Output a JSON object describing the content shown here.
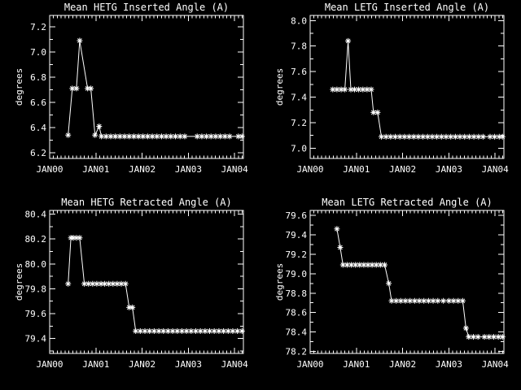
{
  "page": {
    "background": "#000000",
    "foreground": "#ffffff",
    "layout": "2x2 grid of line plots"
  },
  "chart_data": [
    {
      "type": "line",
      "title": "Mean HETG Inserted Angle (A)",
      "ylabel": "degrees",
      "xlabel": "",
      "marker": "asterisk",
      "color": "#ffffff",
      "grid": false,
      "legend": "none",
      "xlim": [
        2000.0,
        2004.19
      ],
      "ylim": [
        6.155,
        7.29
      ],
      "xticks": [
        2000,
        2001,
        2002,
        2003,
        2004
      ],
      "xtick_labels": [
        "JAN00",
        "JAN01",
        "JAN02",
        "JAN03",
        "JAN04"
      ],
      "x_minor_step": 0.08333,
      "yticks": [
        6.2,
        6.4,
        6.6,
        6.8,
        7.0,
        7.2
      ],
      "ytick_labels": [
        "6.2",
        "6.4",
        "6.6",
        "6.8",
        "7.0",
        "7.2"
      ],
      "y_minor_step": 0.1,
      "points": [
        [
          2000.4,
          6.34
        ],
        [
          2000.49,
          6.71
        ],
        [
          2000.58,
          6.71
        ],
        [
          2000.65,
          7.09
        ],
        [
          2000.82,
          6.71
        ],
        [
          2000.89,
          6.71
        ],
        [
          2000.98,
          6.34
        ],
        [
          2001.07,
          6.41
        ],
        [
          2001.12,
          6.33
        ],
        [
          2001.22,
          6.33
        ],
        [
          2001.32,
          6.33
        ],
        [
          2001.42,
          6.33
        ],
        [
          2001.52,
          6.33
        ],
        [
          2001.62,
          6.33
        ],
        [
          2001.72,
          6.33
        ],
        [
          2001.82,
          6.33
        ],
        [
          2001.92,
          6.33
        ],
        [
          2002.02,
          6.33
        ],
        [
          2002.12,
          6.33
        ],
        [
          2002.22,
          6.33
        ],
        [
          2002.32,
          6.33
        ],
        [
          2002.42,
          6.33
        ],
        [
          2002.52,
          6.33
        ],
        [
          2002.62,
          6.33
        ],
        [
          2002.72,
          6.33
        ],
        [
          2002.82,
          6.33
        ],
        [
          2002.92,
          6.33
        ],
        [
          2003.19,
          6.33
        ],
        [
          2003.29,
          6.33
        ],
        [
          2003.39,
          6.33
        ],
        [
          2003.49,
          6.33
        ],
        [
          2003.59,
          6.33
        ],
        [
          2003.69,
          6.33
        ],
        [
          2003.79,
          6.33
        ],
        [
          2003.89,
          6.33
        ],
        [
          2004.08,
          6.33
        ],
        [
          2004.16,
          6.33
        ]
      ]
    },
    {
      "type": "line",
      "title": "Mean LETG Inserted Angle (A)",
      "ylabel": "degrees",
      "xlabel": "",
      "marker": "asterisk",
      "color": "#ffffff",
      "grid": false,
      "legend": "none",
      "xlim": [
        2000.0,
        2004.19
      ],
      "ylim": [
        6.92,
        8.04
      ],
      "xticks": [
        2000,
        2001,
        2002,
        2003,
        2004
      ],
      "xtick_labels": [
        "JAN00",
        "JAN01",
        "JAN02",
        "JAN03",
        "JAN04"
      ],
      "x_minor_step": 0.08333,
      "yticks": [
        7.0,
        7.2,
        7.4,
        7.6,
        7.8,
        8.0
      ],
      "ytick_labels": [
        "7.0",
        "7.2",
        "7.4",
        "7.6",
        "7.8",
        "8.0"
      ],
      "y_minor_step": 0.1,
      "points": [
        [
          2000.49,
          7.46
        ],
        [
          2000.58,
          7.46
        ],
        [
          2000.67,
          7.46
        ],
        [
          2000.75,
          7.46
        ],
        [
          2000.82,
          7.84
        ],
        [
          2000.88,
          7.46
        ],
        [
          2000.96,
          7.46
        ],
        [
          2001.05,
          7.46
        ],
        [
          2001.14,
          7.46
        ],
        [
          2001.23,
          7.46
        ],
        [
          2001.32,
          7.46
        ],
        [
          2001.37,
          7.28
        ],
        [
          2001.46,
          7.28
        ],
        [
          2001.54,
          7.09
        ],
        [
          2001.64,
          7.09
        ],
        [
          2001.74,
          7.09
        ],
        [
          2001.84,
          7.09
        ],
        [
          2001.94,
          7.09
        ],
        [
          2002.04,
          7.09
        ],
        [
          2002.14,
          7.09
        ],
        [
          2002.24,
          7.09
        ],
        [
          2002.34,
          7.09
        ],
        [
          2002.44,
          7.09
        ],
        [
          2002.54,
          7.09
        ],
        [
          2002.64,
          7.09
        ],
        [
          2002.74,
          7.09
        ],
        [
          2002.84,
          7.09
        ],
        [
          2002.94,
          7.09
        ],
        [
          2003.04,
          7.09
        ],
        [
          2003.14,
          7.09
        ],
        [
          2003.24,
          7.09
        ],
        [
          2003.34,
          7.09
        ],
        [
          2003.44,
          7.09
        ],
        [
          2003.54,
          7.09
        ],
        [
          2003.64,
          7.09
        ],
        [
          2003.74,
          7.09
        ],
        [
          2003.89,
          7.09
        ],
        [
          2003.99,
          7.09
        ],
        [
          2004.09,
          7.09
        ],
        [
          2004.16,
          7.09
        ]
      ]
    },
    {
      "type": "line",
      "title": "Mean HETG Retracted Angle (A)",
      "ylabel": "degrees",
      "xlabel": "",
      "marker": "asterisk",
      "color": "#ffffff",
      "grid": false,
      "legend": "none",
      "xlim": [
        2000.0,
        2004.19
      ],
      "ylim": [
        79.28,
        80.43
      ],
      "xticks": [
        2000,
        2001,
        2002,
        2003,
        2004
      ],
      "xtick_labels": [
        "JAN00",
        "JAN01",
        "JAN02",
        "JAN03",
        "JAN04"
      ],
      "x_minor_step": 0.08333,
      "yticks": [
        79.4,
        79.6,
        79.8,
        80.0,
        80.2,
        80.4
      ],
      "ytick_labels": [
        "79.4",
        "79.6",
        "79.8",
        "80.0",
        "80.2",
        "80.4"
      ],
      "y_minor_step": 0.1,
      "points": [
        [
          2000.4,
          79.84
        ],
        [
          2000.46,
          80.21
        ],
        [
          2000.51,
          80.21
        ],
        [
          2000.58,
          80.21
        ],
        [
          2000.65,
          80.21
        ],
        [
          2000.75,
          79.84
        ],
        [
          2000.84,
          79.84
        ],
        [
          2000.93,
          79.84
        ],
        [
          2001.02,
          79.84
        ],
        [
          2001.11,
          79.84
        ],
        [
          2001.19,
          79.84
        ],
        [
          2001.28,
          79.84
        ],
        [
          2001.37,
          79.84
        ],
        [
          2001.46,
          79.84
        ],
        [
          2001.55,
          79.84
        ],
        [
          2001.64,
          79.84
        ],
        [
          2001.72,
          79.65
        ],
        [
          2001.79,
          79.65
        ],
        [
          2001.86,
          79.46
        ],
        [
          2001.96,
          79.46
        ],
        [
          2002.06,
          79.46
        ],
        [
          2002.16,
          79.46
        ],
        [
          2002.26,
          79.46
        ],
        [
          2002.36,
          79.46
        ],
        [
          2002.46,
          79.46
        ],
        [
          2002.56,
          79.46
        ],
        [
          2002.66,
          79.46
        ],
        [
          2002.76,
          79.46
        ],
        [
          2002.86,
          79.46
        ],
        [
          2002.96,
          79.46
        ],
        [
          2003.06,
          79.46
        ],
        [
          2003.16,
          79.46
        ],
        [
          2003.26,
          79.46
        ],
        [
          2003.36,
          79.46
        ],
        [
          2003.46,
          79.46
        ],
        [
          2003.56,
          79.46
        ],
        [
          2003.66,
          79.46
        ],
        [
          2003.76,
          79.46
        ],
        [
          2003.86,
          79.46
        ],
        [
          2003.96,
          79.46
        ],
        [
          2004.06,
          79.46
        ],
        [
          2004.16,
          79.46
        ]
      ]
    },
    {
      "type": "line",
      "title": "Mean LETG Retracted Angle (A)",
      "ylabel": "degrees",
      "xlabel": "",
      "marker": "asterisk",
      "color": "#ffffff",
      "grid": false,
      "legend": "none",
      "xlim": [
        2000.0,
        2004.19
      ],
      "ylim": [
        78.18,
        79.65
      ],
      "xticks": [
        2000,
        2001,
        2002,
        2003,
        2004
      ],
      "xtick_labels": [
        "JAN00",
        "JAN01",
        "JAN02",
        "JAN03",
        "JAN04"
      ],
      "x_minor_step": 0.08333,
      "yticks": [
        78.2,
        78.4,
        78.6,
        78.8,
        79.0,
        79.2,
        79.4,
        79.6
      ],
      "ytick_labels": [
        "78.2",
        "78.4",
        "78.6",
        "78.8",
        "79.0",
        "79.2",
        "79.4",
        "79.6"
      ],
      "y_minor_step": 0.1,
      "points": [
        [
          2000.58,
          79.46
        ],
        [
          2000.65,
          79.27
        ],
        [
          2000.71,
          79.09
        ],
        [
          2000.8,
          79.09
        ],
        [
          2000.89,
          79.09
        ],
        [
          2000.98,
          79.09
        ],
        [
          2001.07,
          79.09
        ],
        [
          2001.16,
          79.09
        ],
        [
          2001.25,
          79.09
        ],
        [
          2001.34,
          79.09
        ],
        [
          2001.43,
          79.09
        ],
        [
          2001.52,
          79.09
        ],
        [
          2001.61,
          79.09
        ],
        [
          2001.7,
          78.9
        ],
        [
          2001.76,
          78.72
        ],
        [
          2001.86,
          78.72
        ],
        [
          2001.96,
          78.72
        ],
        [
          2002.06,
          78.72
        ],
        [
          2002.16,
          78.72
        ],
        [
          2002.26,
          78.72
        ],
        [
          2002.36,
          78.72
        ],
        [
          2002.46,
          78.72
        ],
        [
          2002.56,
          78.72
        ],
        [
          2002.66,
          78.72
        ],
        [
          2002.76,
          78.72
        ],
        [
          2002.88,
          78.72
        ],
        [
          2003.0,
          78.72
        ],
        [
          2003.1,
          78.72
        ],
        [
          2003.2,
          78.72
        ],
        [
          2003.3,
          78.72
        ],
        [
          2003.37,
          78.44
        ],
        [
          2003.43,
          78.35
        ],
        [
          2003.53,
          78.35
        ],
        [
          2003.63,
          78.35
        ],
        [
          2003.77,
          78.35
        ],
        [
          2003.87,
          78.35
        ],
        [
          2003.97,
          78.35
        ],
        [
          2004.07,
          78.35
        ],
        [
          2004.16,
          78.35
        ]
      ]
    }
  ]
}
